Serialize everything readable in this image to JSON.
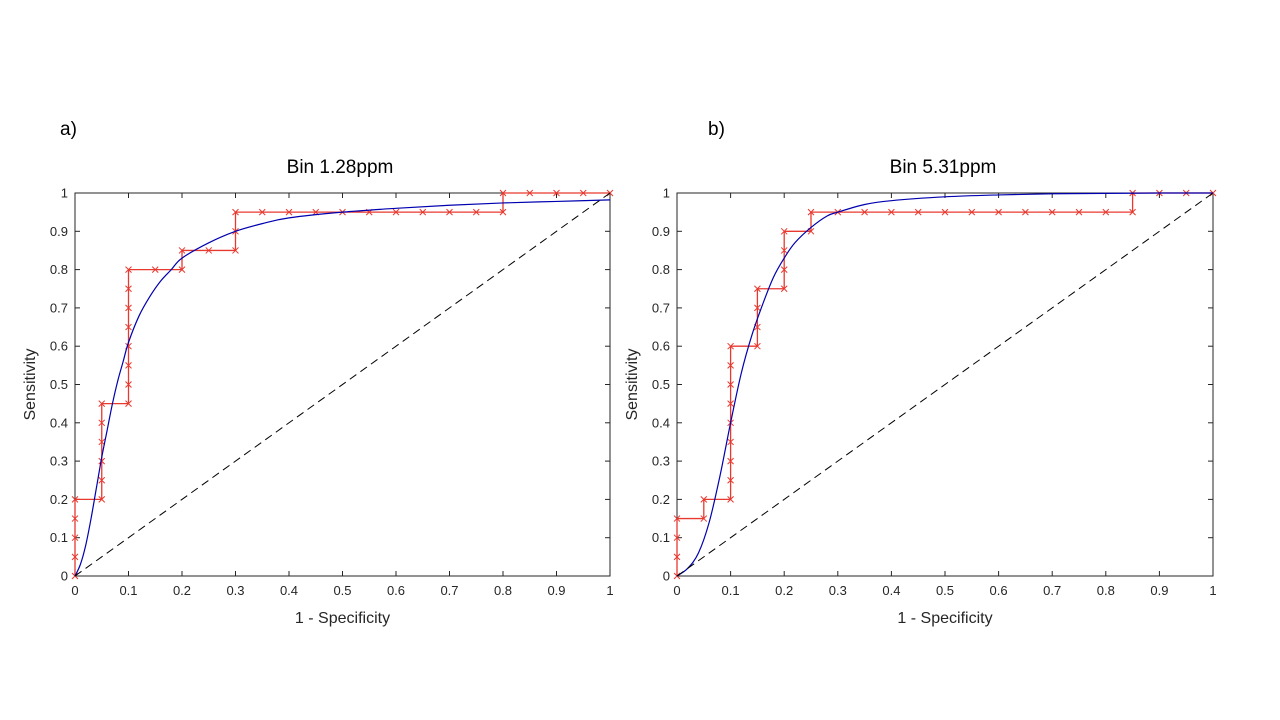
{
  "chart_data": [
    {
      "type": "line",
      "panel_label": "a)",
      "title": "Bin 1.28ppm",
      "xlabel": "1 - Specificity",
      "ylabel": "Sensitivity",
      "xlim": [
        0,
        1
      ],
      "ylim": [
        0,
        1
      ],
      "xticks": [
        "0",
        "0.1",
        "0.2",
        "0.3",
        "0.4",
        "0.5",
        "0.6",
        "0.7",
        "0.8",
        "0.9",
        "1"
      ],
      "yticks": [
        "0",
        "0.1",
        "0.2",
        "0.3",
        "0.4",
        "0.5",
        "0.6",
        "0.7",
        "0.8",
        "0.9",
        "1"
      ],
      "colors": {
        "empirical": "#e8392f",
        "fitted": "#0000b0",
        "chance": "#000000",
        "axis": "#262626"
      },
      "series": [
        {
          "name": "empirical ROC",
          "style": "step-markers",
          "points": [
            [
              0,
              0
            ],
            [
              0,
              0.05
            ],
            [
              0,
              0.1
            ],
            [
              0,
              0.15
            ],
            [
              0,
              0.2
            ],
            [
              0.05,
              0.2
            ],
            [
              0.05,
              0.25
            ],
            [
              0.05,
              0.3
            ],
            [
              0.05,
              0.35
            ],
            [
              0.05,
              0.4
            ],
            [
              0.05,
              0.45
            ],
            [
              0.1,
              0.45
            ],
            [
              0.1,
              0.5
            ],
            [
              0.1,
              0.55
            ],
            [
              0.1,
              0.6
            ],
            [
              0.1,
              0.65
            ],
            [
              0.1,
              0.7
            ],
            [
              0.1,
              0.75
            ],
            [
              0.1,
              0.8
            ],
            [
              0.15,
              0.8
            ],
            [
              0.2,
              0.8
            ],
            [
              0.2,
              0.85
            ],
            [
              0.25,
              0.85
            ],
            [
              0.3,
              0.85
            ],
            [
              0.3,
              0.9
            ],
            [
              0.3,
              0.95
            ],
            [
              0.35,
              0.95
            ],
            [
              0.4,
              0.95
            ],
            [
              0.45,
              0.95
            ],
            [
              0.5,
              0.95
            ],
            [
              0.55,
              0.95
            ],
            [
              0.6,
              0.95
            ],
            [
              0.65,
              0.95
            ],
            [
              0.7,
              0.95
            ],
            [
              0.75,
              0.95
            ],
            [
              0.8,
              0.95
            ],
            [
              0.8,
              1
            ],
            [
              0.85,
              1
            ],
            [
              0.9,
              1
            ],
            [
              0.95,
              1
            ],
            [
              1,
              1
            ]
          ]
        },
        {
          "name": "fitted ROC",
          "style": "smooth",
          "points": [
            [
              0,
              0
            ],
            [
              0.01,
              0.03
            ],
            [
              0.02,
              0.08
            ],
            [
              0.03,
              0.15
            ],
            [
              0.04,
              0.23
            ],
            [
              0.05,
              0.31
            ],
            [
              0.06,
              0.38
            ],
            [
              0.07,
              0.45
            ],
            [
              0.08,
              0.51
            ],
            [
              0.09,
              0.56
            ],
            [
              0.1,
              0.61
            ],
            [
              0.12,
              0.68
            ],
            [
              0.14,
              0.73
            ],
            [
              0.16,
              0.77
            ],
            [
              0.18,
              0.8
            ],
            [
              0.2,
              0.83
            ],
            [
              0.25,
              0.87
            ],
            [
              0.3,
              0.9
            ],
            [
              0.35,
              0.92
            ],
            [
              0.4,
              0.935
            ],
            [
              0.5,
              0.95
            ],
            [
              0.6,
              0.96
            ],
            [
              0.7,
              0.968
            ],
            [
              0.8,
              0.974
            ],
            [
              0.9,
              0.978
            ],
            [
              1,
              0.982
            ]
          ]
        },
        {
          "name": "chance",
          "style": "dashed",
          "points": [
            [
              0,
              0
            ],
            [
              1,
              1
            ]
          ]
        }
      ]
    },
    {
      "type": "line",
      "panel_label": "b)",
      "title": "Bin 5.31ppm",
      "xlabel": "1 - Specificity",
      "ylabel": "Sensitivity",
      "xlim": [
        0,
        1
      ],
      "ylim": [
        0,
        1
      ],
      "xticks": [
        "0",
        "0.1",
        "0.2",
        "0.3",
        "0.4",
        "0.5",
        "0.6",
        "0.7",
        "0.8",
        "0.9",
        "1"
      ],
      "yticks": [
        "0",
        "0.1",
        "0.2",
        "0.3",
        "0.4",
        "0.5",
        "0.6",
        "0.7",
        "0.8",
        "0.9",
        "1"
      ],
      "colors": {
        "empirical": "#e8392f",
        "fitted": "#0000b0",
        "chance": "#000000",
        "axis": "#262626"
      },
      "series": [
        {
          "name": "empirical ROC",
          "style": "step-markers",
          "points": [
            [
              0,
              0
            ],
            [
              0,
              0.05
            ],
            [
              0,
              0.1
            ],
            [
              0,
              0.15
            ],
            [
              0.05,
              0.15
            ],
            [
              0.05,
              0.2
            ],
            [
              0.1,
              0.2
            ],
            [
              0.1,
              0.25
            ],
            [
              0.1,
              0.3
            ],
            [
              0.1,
              0.35
            ],
            [
              0.1,
              0.4
            ],
            [
              0.1,
              0.45
            ],
            [
              0.1,
              0.5
            ],
            [
              0.1,
              0.55
            ],
            [
              0.1,
              0.6
            ],
            [
              0.15,
              0.6
            ],
            [
              0.15,
              0.65
            ],
            [
              0.15,
              0.7
            ],
            [
              0.15,
              0.75
            ],
            [
              0.2,
              0.75
            ],
            [
              0.2,
              0.8
            ],
            [
              0.2,
              0.85
            ],
            [
              0.2,
              0.9
            ],
            [
              0.25,
              0.9
            ],
            [
              0.25,
              0.95
            ],
            [
              0.3,
              0.95
            ],
            [
              0.35,
              0.95
            ],
            [
              0.4,
              0.95
            ],
            [
              0.45,
              0.95
            ],
            [
              0.5,
              0.95
            ],
            [
              0.55,
              0.95
            ],
            [
              0.6,
              0.95
            ],
            [
              0.65,
              0.95
            ],
            [
              0.7,
              0.95
            ],
            [
              0.75,
              0.95
            ],
            [
              0.8,
              0.95
            ],
            [
              0.85,
              0.95
            ],
            [
              0.85,
              1
            ],
            [
              0.9,
              1
            ],
            [
              0.95,
              1
            ],
            [
              1,
              1
            ]
          ]
        },
        {
          "name": "fitted ROC",
          "style": "smooth",
          "points": [
            [
              0,
              0
            ],
            [
              0.02,
              0.02
            ],
            [
              0.04,
              0.06
            ],
            [
              0.06,
              0.14
            ],
            [
              0.08,
              0.26
            ],
            [
              0.1,
              0.4
            ],
            [
              0.12,
              0.53
            ],
            [
              0.14,
              0.63
            ],
            [
              0.16,
              0.71
            ],
            [
              0.18,
              0.78
            ],
            [
              0.2,
              0.83
            ],
            [
              0.22,
              0.87
            ],
            [
              0.25,
              0.91
            ],
            [
              0.28,
              0.94
            ],
            [
              0.3,
              0.95
            ],
            [
              0.35,
              0.97
            ],
            [
              0.4,
              0.98
            ],
            [
              0.5,
              0.99
            ],
            [
              0.6,
              0.995
            ],
            [
              0.7,
              0.998
            ],
            [
              0.8,
              0.999
            ],
            [
              0.9,
              1
            ],
            [
              1,
              1
            ]
          ]
        },
        {
          "name": "chance",
          "style": "dashed",
          "points": [
            [
              0,
              0
            ],
            [
              1,
              1
            ]
          ]
        }
      ]
    }
  ]
}
